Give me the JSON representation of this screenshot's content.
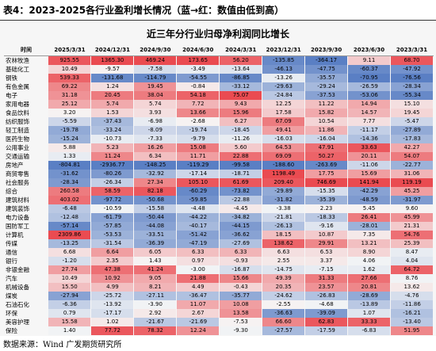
{
  "caption": "表4：2023-2025各行业盈利增长情况（蓝→红：数值由低到高）",
  "title": "近三年分行业归母净利润同比增长",
  "header": [
    "时间",
    "2025/3/31",
    "2024/12/31",
    "2024/9/30",
    "2024/6/30",
    "2024/3/31",
    "2023/12/31",
    "2023/9/30",
    "2023/6/30",
    "2023/3/31"
  ],
  "rows": [
    {
      "name": "农林牧渔",
      "values": [
        "925.55",
        "1365.30",
        "469.24",
        "173.65",
        "56.20",
        "-135.85",
        "-364.17",
        "9.11",
        "68.70"
      ]
    },
    {
      "name": "基础化工",
      "values": [
        "10.49",
        "-9.57",
        "-7.58",
        "-3.49",
        "-13.64",
        "-46.13",
        "-47.75",
        "-60.37",
        "-47.92"
      ]
    },
    {
      "name": "钢铁",
      "values": [
        "539.33",
        "-131.68",
        "-114.79",
        "-54.55",
        "-86.85",
        "-13.26",
        "-35.57",
        "-70.95",
        "-76.56"
      ]
    },
    {
      "name": "有色金属",
      "values": [
        "69.22",
        "1.24",
        "19.45",
        "-0.84",
        "-33.12",
        "-29.63",
        "-29.24",
        "-26.59",
        "-28.34"
      ]
    },
    {
      "name": "电子",
      "values": [
        "31.18",
        "20.45",
        "38.04",
        "54.18",
        "75.07",
        "-24.84",
        "-37.53",
        "-53.06",
        "-55.34"
      ]
    },
    {
      "name": "家用电器",
      "values": [
        "25.12",
        "5.74",
        "5.74",
        "7.72",
        "9.43",
        "12.25",
        "11.22",
        "14.94",
        "15.10"
      ]
    },
    {
      "name": "食品饮料",
      "values": [
        "3.20",
        "1.53",
        "3.93",
        "13.66",
        "15.96",
        "17.58",
        "15.82",
        "14.57",
        "19.45"
      ]
    },
    {
      "name": "纺织服饰",
      "values": [
        "-5.59",
        "-37.43",
        "-6.98",
        "-2.68",
        "6.27",
        "67.09",
        "10.54",
        "7.77",
        "-5.47"
      ]
    },
    {
      "name": "轻工制造",
      "values": [
        "-19.78",
        "-33.24",
        "-8.09",
        "-19.74",
        "-18.45",
        "49.41",
        "11.86",
        "-11.17",
        "-27.89"
      ]
    },
    {
      "name": "医药生物",
      "values": [
        "-15.24",
        "-10.73",
        "-7.33",
        "-9.79",
        "-11.26",
        "-16.03",
        "-16.04",
        "-14.36",
        "-17.83"
      ]
    },
    {
      "name": "公用事业",
      "values": [
        "5.88",
        "5.23",
        "16.26",
        "15.08",
        "5.60",
        "64.53",
        "47.91",
        "33.63",
        "42.27"
      ]
    },
    {
      "name": "交通运输",
      "values": [
        "1.33",
        "11.24",
        "6.34",
        "11.71",
        "22.88",
        "69.09",
        "50.27",
        "20.11",
        "54.07"
      ]
    },
    {
      "name": "房地产",
      "values": [
        "-804.81",
        "-2936.77",
        "-148.25",
        "-119.29",
        "-99.58",
        "-188.60",
        "-263.69",
        "-11.06",
        "-22.77"
      ]
    },
    {
      "name": "商贸零售",
      "values": [
        "-31.62",
        "-80.26",
        "-32.92",
        "-17.14",
        "-18.71",
        "1198.49",
        "17.75",
        "15.69",
        "31.06"
      ]
    },
    {
      "name": "社会服务",
      "values": [
        "-28.34",
        "-26.34",
        "27.34",
        "105.10",
        "61.69",
        "209.40",
        "746.69",
        "141.94",
        "119.19"
      ]
    },
    {
      "name": "综合",
      "values": [
        "260.58",
        "58.59",
        "82.18",
        "-60.29",
        "-73.82",
        "-29.89",
        "-15.35",
        "-42.29",
        "45.25"
      ]
    },
    {
      "name": "建筑材料",
      "values": [
        "403.02",
        "-97.72",
        "-50.68",
        "-59.85",
        "-22.88",
        "-31.82",
        "-35.39",
        "-48.59",
        "-31.97"
      ]
    },
    {
      "name": "建筑装饰",
      "values": [
        "-6.48",
        "-10.59",
        "-15.58",
        "-4.48",
        "-4.45",
        "-3.38",
        "2.23",
        "5.45",
        "9.60"
      ]
    },
    {
      "name": "电力设备",
      "values": [
        "-12.48",
        "-61.79",
        "-50.44",
        "-44.22",
        "-34.82",
        "-21.81",
        "-18.33",
        "26.41",
        "45.99"
      ]
    },
    {
      "name": "国防军工",
      "values": [
        "-57.14",
        "-57.85",
        "-44.08",
        "-40.17",
        "-44.15",
        "-26.13",
        "-9.16",
        "-28.01",
        "21.31"
      ]
    },
    {
      "name": "计算机",
      "values": [
        "2309.86",
        "-53.53",
        "-33.51",
        "-51.42",
        "-36.62",
        "18.15",
        "10.87",
        "7.35",
        "54.76"
      ]
    },
    {
      "name": "传媒",
      "values": [
        "-13.25",
        "-31.54",
        "-36.39",
        "-47.19",
        "-27.69",
        "138.62",
        "29.91",
        "13.21",
        "25.39"
      ]
    },
    {
      "name": "通信",
      "values": [
        "6.68",
        "6.64",
        "6.05",
        "6.33",
        "6.33",
        "6.63",
        "6.53",
        "8.90",
        "8.47"
      ]
    },
    {
      "name": "银行",
      "values": [
        "-1.20",
        "2.35",
        "1.43",
        "0.97",
        "-0.93",
        "2.55",
        "3.37",
        "4.06",
        "4.04"
      ]
    },
    {
      "name": "非银金融",
      "values": [
        "27.74",
        "47.38",
        "41.24",
        "-3.00",
        "-16.87",
        "-14.75",
        "-7.15",
        "1.62",
        "64.72"
      ]
    },
    {
      "name": "汽车",
      "values": [
        "10.49",
        "10.92",
        "9.05",
        "21.88",
        "15.66",
        "49.39",
        "31.33",
        "27.66",
        "8.76"
      ]
    },
    {
      "name": "机械设备",
      "values": [
        "15.50",
        "4.99",
        "8.21",
        "4.49",
        "-0.43",
        "20.35",
        "23.57",
        "20.81",
        "13.62"
      ]
    },
    {
      "name": "煤炭",
      "values": [
        "-27.94",
        "-25.72",
        "-27.11",
        "-36.47",
        "-35.77",
        "-24.62",
        "-26.83",
        "-28.69",
        "-4.76"
      ]
    },
    {
      "name": "石油石化",
      "values": [
        "-6.36",
        "-13.92",
        "-3.90",
        "11.07",
        "10.08",
        "-2.55",
        "-4.68",
        "-13.89",
        "-11.86"
      ]
    },
    {
      "name": "环保",
      "values": [
        "0.79",
        "-17.17",
        "2.92",
        "2.67",
        "13.58",
        "-36.63",
        "-39.09",
        "1.07",
        "-16.21"
      ]
    },
    {
      "name": "美容护理",
      "values": [
        "15.58",
        "1.02",
        "-21.67",
        "-21.69",
        "-7.53",
        "66.60",
        "62.83",
        "33.33",
        "-13.40"
      ]
    },
    {
      "name": "保险",
      "values": [
        "1.40",
        "77.72",
        "78.32",
        "12.24",
        "-9.30",
        "-27.57",
        "-17.59",
        "-6.83",
        "51.95"
      ]
    }
  ],
  "colors": {
    "low": "#5a7fc4",
    "mid": "#f6f6f6",
    "high": "#ea4b51"
  },
  "source": "数据来源：Wind  广发期货研究所"
}
